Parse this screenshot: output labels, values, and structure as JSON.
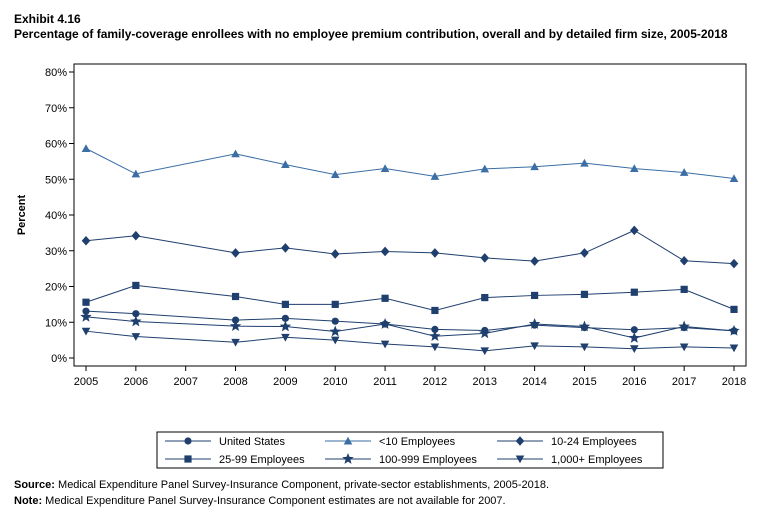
{
  "exhibit": "Exhibit 4.16",
  "title": "Percentage of family-coverage enrollees with no employee premium contribution, overall and by detailed firm size, 2005-2018",
  "source_label": "Source:",
  "source_text": "Medical Expenditure Panel Survey-Insurance Component, private-sector establishments, 2005-2018.",
  "note_label": "Note:",
  "note_text": "Medical Expenditure Panel Survey-Insurance Component estimates are not available for 2007.",
  "colors": {
    "series": "#1f3f6e",
    "series_light": "#3a6ea5",
    "axis": "#000000"
  },
  "chart_data": {
    "type": "line",
    "ylabel": "Percent",
    "xlabel": "",
    "x": [
      2005,
      2006,
      2007,
      2008,
      2009,
      2010,
      2011,
      2012,
      2013,
      2014,
      2015,
      2016,
      2017,
      2018
    ],
    "xticks": [
      "2005",
      "2006",
      "2007",
      "2008",
      "2009",
      "2010",
      "2011",
      "2012",
      "2013",
      "2014",
      "2015",
      "2016",
      "2017",
      "2018"
    ],
    "yticks": [
      "0%",
      "10%",
      "20%",
      "30%",
      "40%",
      "50%",
      "60%",
      "70%",
      "80%"
    ],
    "ylim": [
      0,
      80
    ],
    "grid": false,
    "legend_position": "bottom",
    "series": [
      {
        "name": "United States",
        "marker": "circle",
        "values": [
          13.1,
          12.4,
          null,
          10.6,
          11.1,
          10.3,
          9.5,
          8.0,
          7.7,
          9.2,
          8.5,
          7.9,
          8.5,
          7.6
        ]
      },
      {
        "name": "<10 Employees",
        "marker": "triangle",
        "values": [
          58.6,
          51.5,
          null,
          57.1,
          54.1,
          51.3,
          53.0,
          50.8,
          52.9,
          53.5,
          54.5,
          53.0,
          51.9,
          50.2
        ]
      },
      {
        "name": "10-24 Employees",
        "marker": "diamond",
        "values": [
          32.8,
          34.2,
          null,
          29.4,
          30.8,
          29.1,
          29.8,
          29.4,
          28.0,
          27.1,
          29.4,
          35.7,
          27.2,
          26.4
        ]
      },
      {
        "name": "25-99 Employees",
        "marker": "square",
        "values": [
          15.6,
          20.3,
          null,
          17.2,
          15.0,
          15.0,
          16.7,
          13.3,
          16.9,
          17.5,
          17.8,
          18.4,
          19.2,
          13.6
        ]
      },
      {
        "name": "100-999 Employees",
        "marker": "star",
        "values": [
          11.5,
          10.2,
          null,
          8.9,
          8.8,
          7.4,
          9.5,
          6.1,
          6.9,
          9.5,
          8.8,
          5.6,
          8.8,
          7.6
        ]
      },
      {
        "name": "1,000+ Employees",
        "marker": "down-triangle",
        "values": [
          7.5,
          6.0,
          null,
          4.4,
          5.8,
          5.0,
          3.9,
          3.1,
          2.0,
          3.4,
          3.1,
          2.6,
          3.1,
          2.8
        ]
      }
    ]
  }
}
